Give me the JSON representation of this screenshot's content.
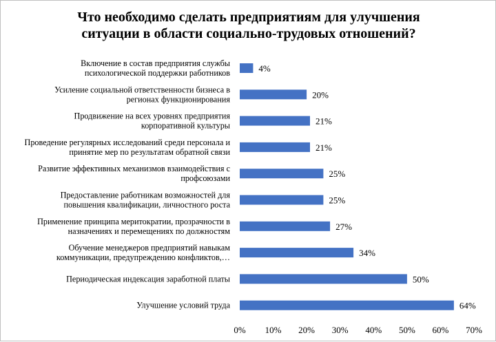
{
  "chart_data": {
    "type": "bar",
    "orientation": "horizontal",
    "title_lines": [
      "Что необходимо сделать предприятиям для улучшения",
      "ситуации  в области  социально-трудовых  отношений?"
    ],
    "categories": [
      [
        "Включение в состав предприятия  службы",
        "психологической поддержки работников"
      ],
      [
        "Усиление социальной ответственности бизнеса в",
        "регионах функционирования"
      ],
      [
        "Продвижение на всех уровнях предприятия",
        "корпоративной культуры"
      ],
      [
        "Проведение регулярных  исследований среди персонала и",
        "принятие  мер по результатам обратной связи"
      ],
      [
        "Развитие эффективных  механизмов взаимодействия с",
        "профсоюзами"
      ],
      [
        "Предоставление работникам возможностей для",
        "повышения квалификации,  личностного роста"
      ],
      [
        "Применение принципа  меритократии,  прозрачности в",
        "назначениях и перемещениях по должностям"
      ],
      [
        "Обучение менеджеров предприятий  навыкам",
        "коммуникации,  предупреждению конфликтов,…"
      ],
      [
        "Периодическая индексация  заработной платы"
      ],
      [
        "Улучшение условий труда"
      ]
    ],
    "values": [
      4,
      20,
      21,
      21,
      25,
      25,
      27,
      34,
      50,
      64
    ],
    "value_labels": [
      "4%",
      "20%",
      "21%",
      "21%",
      "25%",
      "25%",
      "27%",
      "34%",
      "50%",
      "64%"
    ],
    "xlim": [
      0,
      70
    ],
    "x_ticks": [
      "0%",
      "10%",
      "20%",
      "30%",
      "40%",
      "50%",
      "60%",
      "70%"
    ],
    "grid": false,
    "bar_color": "#4472c4"
  }
}
